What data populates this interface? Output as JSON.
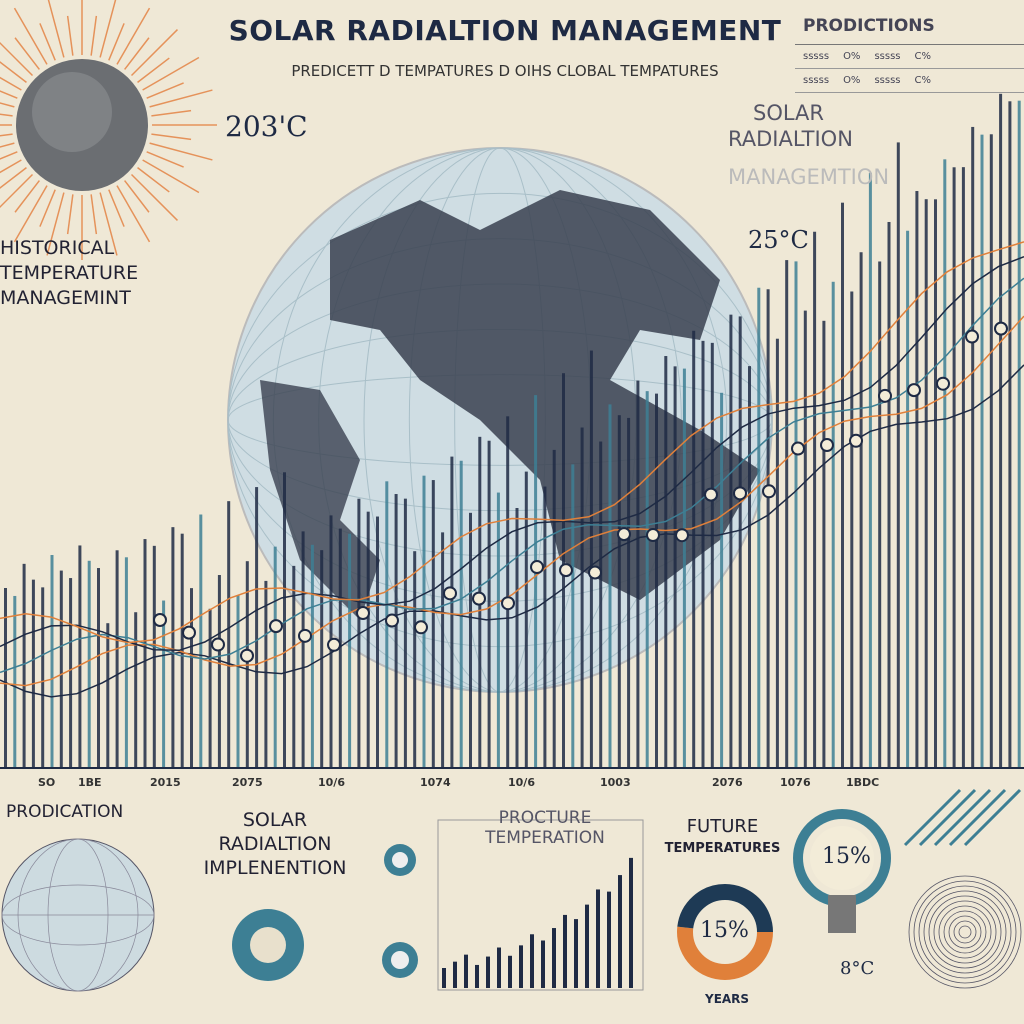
{
  "header": {
    "title": "SOLAR RADIALTION MANAGEMENT",
    "subtitle": "PREDICETT D TEMPATURES D OIHS   CLOBAL TEMPATURES"
  },
  "predictions_table": {
    "heading": "PRODICTIONS",
    "rows": [
      [
        "sssss",
        "O%",
        "sssss",
        "C%"
      ],
      [
        "sssss",
        "O%",
        "sssss",
        "C%"
      ]
    ]
  },
  "labels": {
    "temp_left": "203'C",
    "temp_right": "25°C",
    "srm_line1": "SOLAR",
    "srm_line2": "RADIALTION",
    "srm_line3": "MANAGEMTION",
    "historical_line1": "HISTORICAL",
    "historical_line2": "TEMPERATURE",
    "historical_line3": "MANAGEMINT"
  },
  "axis_labels": [
    "SO",
    "1BE",
    "2015",
    "2075",
    "10/6",
    "1074",
    "10/6",
    "1003",
    "2076",
    "1076",
    "1BDC"
  ],
  "panels": {
    "prodication": "PRODICATION",
    "solar_line1": "SOLAR",
    "solar_line2": "RADIALTION",
    "solar_line3": "IMPLENENTION",
    "chart_title_line1": "PROCTURE",
    "chart_title_line2": "TEMPERATION",
    "future_line1": "FUTURE",
    "future_line2": "TEMPERATURES",
    "donut_value": "15%",
    "donut_label": "YEARS",
    "bulb_value": "15%",
    "bulb_temp": "8°C"
  },
  "colors": {
    "navy": "#1e2a44",
    "teal": "#3d7f94",
    "orange": "#e0803a",
    "bg": "#efe8d6"
  }
}
